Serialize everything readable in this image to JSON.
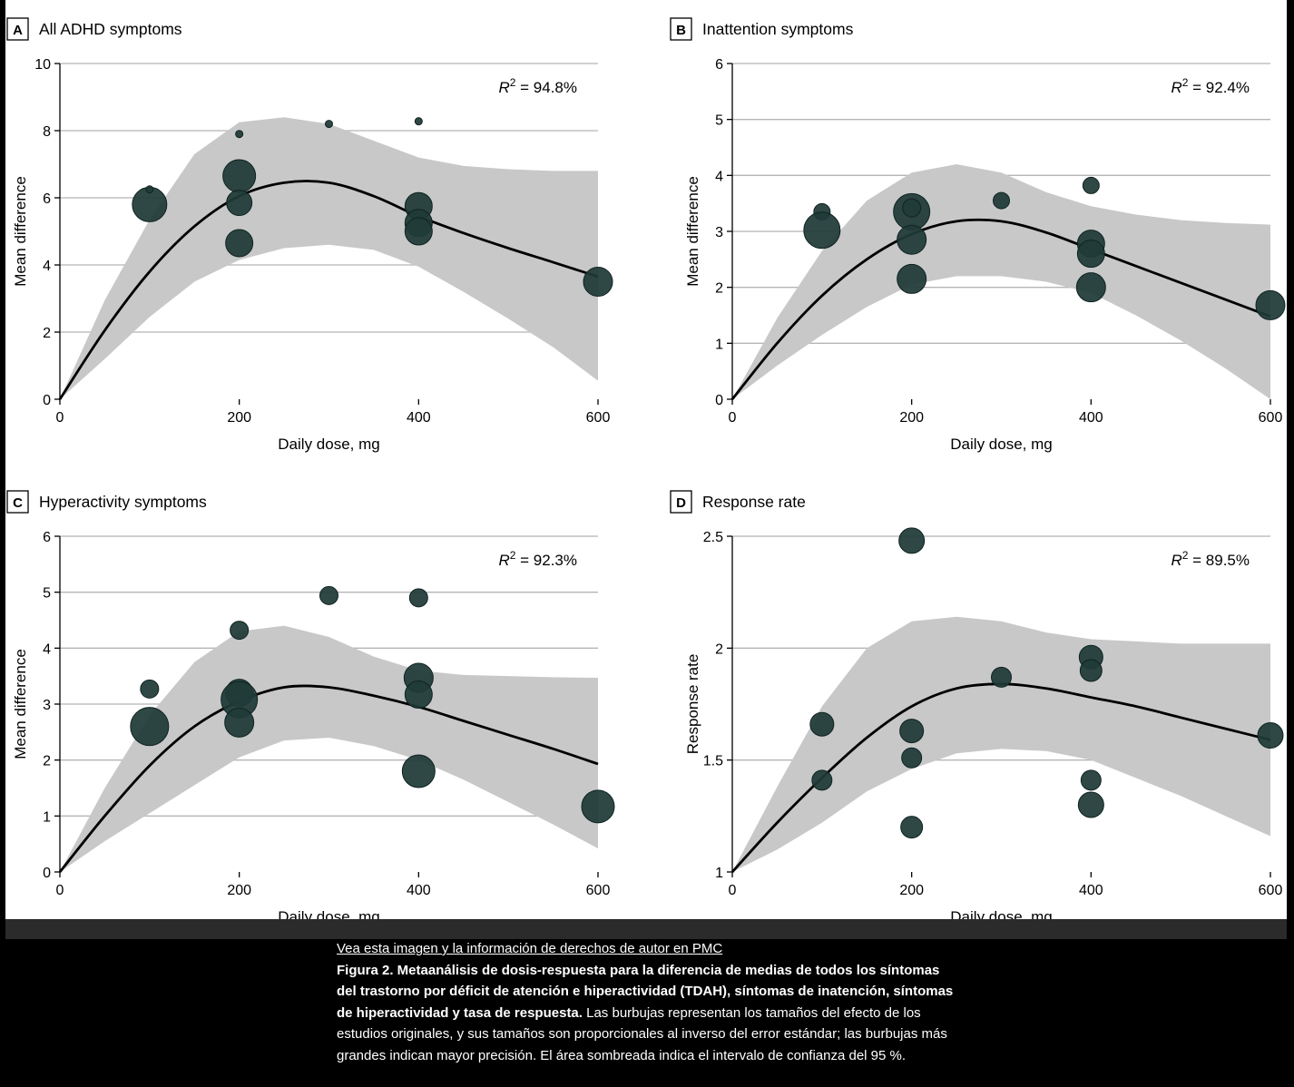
{
  "chart_data": [
    {
      "type": "scatter",
      "panel_letter": "A",
      "title": "All ADHD symptoms",
      "xlabel": "Daily dose, mg",
      "ylabel": "Mean difference",
      "xlim": [
        0,
        600
      ],
      "ylim": [
        0,
        10
      ],
      "x_ticks": [
        0,
        200,
        400,
        600
      ],
      "y_ticks": [
        0,
        2,
        4,
        6,
        8,
        10
      ],
      "y_tick_labels": [
        "0",
        "2",
        "4",
        "6",
        "8",
        "10"
      ],
      "grid": "horizontal",
      "annotation": {
        "base": "R",
        "sup": "2",
        "text": " = 94.8%"
      },
      "points": [
        {
          "x": 100,
          "y": 5.8,
          "r": 19
        },
        {
          "x": 100,
          "y": 6.25,
          "r": 4
        },
        {
          "x": 200,
          "y": 7.9,
          "r": 4
        },
        {
          "x": 200,
          "y": 6.65,
          "r": 18
        },
        {
          "x": 200,
          "y": 5.85,
          "r": 14
        },
        {
          "x": 200,
          "y": 4.65,
          "r": 15
        },
        {
          "x": 300,
          "y": 8.2,
          "r": 4
        },
        {
          "x": 400,
          "y": 8.28,
          "r": 4
        },
        {
          "x": 400,
          "y": 5.75,
          "r": 15
        },
        {
          "x": 400,
          "y": 5.25,
          "r": 15
        },
        {
          "x": 400,
          "y": 5.0,
          "r": 15
        },
        {
          "x": 600,
          "y": 3.5,
          "r": 16
        }
      ],
      "fit": {
        "x": [
          0,
          50,
          100,
          150,
          200,
          250,
          300,
          350,
          400,
          450,
          500,
          550,
          600
        ],
        "y": [
          0,
          2.05,
          3.8,
          5.15,
          6.05,
          6.45,
          6.45,
          6.05,
          5.45,
          4.95,
          4.5,
          4.08,
          3.65
        ]
      },
      "ci_upper": [
        0,
        2.95,
        5.35,
        7.3,
        8.25,
        8.4,
        8.2,
        7.7,
        7.2,
        6.95,
        6.85,
        6.8,
        6.8
      ],
      "ci_lower": [
        0,
        1.2,
        2.45,
        3.5,
        4.15,
        4.5,
        4.6,
        4.45,
        3.95,
        3.2,
        2.4,
        1.55,
        0.55
      ]
    },
    {
      "type": "scatter",
      "panel_letter": "B",
      "title": "Inattention symptoms",
      "xlabel": "Daily dose, mg",
      "ylabel": "Mean difference",
      "xlim": [
        0,
        600
      ],
      "ylim": [
        0,
        6
      ],
      "x_ticks": [
        0,
        200,
        400,
        600
      ],
      "y_ticks": [
        0,
        1,
        2,
        3,
        4,
        5,
        6
      ],
      "y_tick_labels": [
        "0",
        "1",
        "2",
        "3",
        "4",
        "5",
        "6"
      ],
      "grid": "horizontal",
      "annotation": {
        "base": "R",
        "sup": "2",
        "text": " = 92.4%"
      },
      "points": [
        {
          "x": 100,
          "y": 3.35,
          "r": 9
        },
        {
          "x": 100,
          "y": 3.02,
          "r": 20
        },
        {
          "x": 200,
          "y": 3.35,
          "r": 20
        },
        {
          "x": 200,
          "y": 3.42,
          "r": 10
        },
        {
          "x": 200,
          "y": 2.85,
          "r": 16
        },
        {
          "x": 200,
          "y": 2.15,
          "r": 16
        },
        {
          "x": 300,
          "y": 3.55,
          "r": 9
        },
        {
          "x": 400,
          "y": 3.82,
          "r": 9
        },
        {
          "x": 400,
          "y": 2.78,
          "r": 15
        },
        {
          "x": 400,
          "y": 2.6,
          "r": 15
        },
        {
          "x": 400,
          "y": 2.0,
          "r": 16
        },
        {
          "x": 600,
          "y": 1.68,
          "r": 16
        }
      ],
      "fit": {
        "x": [
          0,
          50,
          100,
          150,
          200,
          250,
          300,
          350,
          400,
          450,
          500,
          550,
          600
        ],
        "y": [
          0,
          1.0,
          1.85,
          2.5,
          2.95,
          3.18,
          3.18,
          2.98,
          2.68,
          2.38,
          2.08,
          1.78,
          1.48
        ]
      },
      "ci_upper": [
        0,
        1.45,
        2.65,
        3.55,
        4.05,
        4.2,
        4.05,
        3.7,
        3.45,
        3.3,
        3.2,
        3.15,
        3.12
      ],
      "ci_lower": [
        0,
        0.6,
        1.15,
        1.65,
        2.05,
        2.2,
        2.2,
        2.1,
        1.9,
        1.5,
        1.05,
        0.55,
        0.0
      ]
    },
    {
      "type": "scatter",
      "panel_letter": "C",
      "title": "Hyperactivity symptoms",
      "xlabel": "Daily dose, mg",
      "ylabel": "Mean difference",
      "xlim": [
        0,
        600
      ],
      "ylim": [
        0,
        6
      ],
      "x_ticks": [
        0,
        200,
        400,
        600
      ],
      "y_ticks": [
        0,
        1,
        2,
        3,
        4,
        5,
        6
      ],
      "y_tick_labels": [
        "0",
        "1",
        "2",
        "3",
        "4",
        "5",
        "6"
      ],
      "grid": "horizontal",
      "annotation": {
        "base": "R",
        "sup": "2",
        "text": " = 92.3%"
      },
      "points": [
        {
          "x": 100,
          "y": 3.27,
          "r": 10
        },
        {
          "x": 100,
          "y": 2.6,
          "r": 21
        },
        {
          "x": 200,
          "y": 4.32,
          "r": 10
        },
        {
          "x": 200,
          "y": 3.2,
          "r": 15
        },
        {
          "x": 200,
          "y": 3.08,
          "r": 20
        },
        {
          "x": 200,
          "y": 2.67,
          "r": 16
        },
        {
          "x": 300,
          "y": 4.94,
          "r": 10
        },
        {
          "x": 400,
          "y": 4.9,
          "r": 10
        },
        {
          "x": 400,
          "y": 3.47,
          "r": 16
        },
        {
          "x": 400,
          "y": 3.17,
          "r": 15
        },
        {
          "x": 400,
          "y": 1.8,
          "r": 18
        },
        {
          "x": 600,
          "y": 1.17,
          "r": 18
        }
      ],
      "fit": {
        "x": [
          0,
          50,
          100,
          150,
          200,
          250,
          300,
          350,
          400,
          450,
          500,
          550,
          600
        ],
        "y": [
          0,
          1.0,
          1.9,
          2.6,
          3.05,
          3.3,
          3.3,
          3.15,
          2.95,
          2.7,
          2.45,
          2.2,
          1.93
        ]
      },
      "ci_upper": [
        0,
        1.5,
        2.8,
        3.75,
        4.3,
        4.4,
        4.2,
        3.85,
        3.6,
        3.52,
        3.5,
        3.48,
        3.47
      ],
      "ci_lower": [
        0,
        0.55,
        1.05,
        1.55,
        2.05,
        2.35,
        2.4,
        2.25,
        2.0,
        1.65,
        1.25,
        0.85,
        0.42
      ]
    },
    {
      "type": "scatter",
      "panel_letter": "D",
      "title": "Response rate",
      "xlabel": "Daily dose, mg",
      "ylabel": "Response rate",
      "xlim": [
        0,
        600
      ],
      "ylim": [
        1,
        2.5
      ],
      "x_ticks": [
        0,
        200,
        400,
        600
      ],
      "y_ticks": [
        1,
        1.5,
        2,
        2.5
      ],
      "y_tick_labels": [
        "1",
        "1.5",
        "2",
        "2.5"
      ],
      "grid": "horizontal",
      "annotation": {
        "base": "R",
        "sup": "2",
        "text": " = 89.5%"
      },
      "points": [
        {
          "x": 100,
          "y": 1.66,
          "r": 13
        },
        {
          "x": 100,
          "y": 1.41,
          "r": 11
        },
        {
          "x": 200,
          "y": 2.48,
          "r": 14
        },
        {
          "x": 200,
          "y": 1.63,
          "r": 13
        },
        {
          "x": 200,
          "y": 1.51,
          "r": 11
        },
        {
          "x": 200,
          "y": 1.2,
          "r": 12
        },
        {
          "x": 300,
          "y": 1.87,
          "r": 11
        },
        {
          "x": 400,
          "y": 1.96,
          "r": 13
        },
        {
          "x": 400,
          "y": 1.9,
          "r": 12
        },
        {
          "x": 400,
          "y": 1.41,
          "r": 11
        },
        {
          "x": 400,
          "y": 1.3,
          "r": 14
        },
        {
          "x": 600,
          "y": 1.61,
          "r": 14
        }
      ],
      "fit": {
        "x": [
          0,
          50,
          100,
          150,
          200,
          250,
          300,
          350,
          400,
          450,
          500,
          550,
          600
        ],
        "y": [
          1.0,
          1.22,
          1.42,
          1.6,
          1.74,
          1.82,
          1.84,
          1.82,
          1.78,
          1.74,
          1.69,
          1.64,
          1.59
        ]
      },
      "ci_upper": [
        1.0,
        1.38,
        1.74,
        2.0,
        2.12,
        2.14,
        2.12,
        2.07,
        2.04,
        2.03,
        2.02,
        2.02,
        2.02
      ],
      "ci_lower": [
        1.0,
        1.1,
        1.22,
        1.36,
        1.46,
        1.53,
        1.55,
        1.54,
        1.5,
        1.42,
        1.34,
        1.25,
        1.16
      ]
    }
  ],
  "caption": {
    "link_text": "Vea esta imagen y la información de derechos de autor en PMC",
    "title": "Figura 2. Metaanálisis de dosis-respuesta para la diferencia de medias de todos los síntomas del trastorno por déficit de atención e hiperactividad (TDAH), síntomas de inatención, síntomas de hiperactividad y tasa de respuesta.",
    "body": "Las burbujas representan los tamaños del efecto de los estudios originales, y sus tamaños son proporcionales al inverso del error estándar; las burbujas más grandes indican mayor precisión. El área sombreada indica el intervalo de confianza del 95 %."
  },
  "colors": {
    "bubble": "#1f3a38",
    "bubble_stroke": "#0f2321",
    "band": "#c8c8c8",
    "grid": "#b5b5b5",
    "curve": "#000000"
  }
}
